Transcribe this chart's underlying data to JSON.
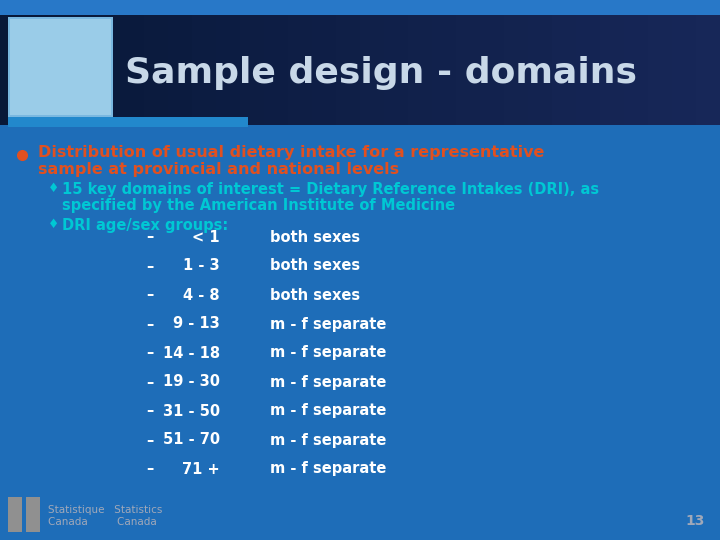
{
  "bg_color": "#1e6ab0",
  "header_dark_bg": "#0d1f3c",
  "header_mid_bg": "#122040",
  "title": "Sample design - domains",
  "title_color": "#c8d8e8",
  "title_fontsize": 26,
  "icon_bg": "#aacce8",
  "accent_bar_color": "#2e86c1",
  "bullet_color": "#e05020",
  "bullet_text_line1": "Distribution of usual dietary intake for a representative",
  "bullet_text_line2": "sample at provincial and national levels",
  "bullet_fontsize": 11.5,
  "sub1_color": "#00c8d4",
  "sub1_text_line1": "15 key domains of interest = Dietary Reference Intakes (DRI), as",
  "sub1_text_line2": "specified by the American Institute of Medicine",
  "sub2_text": "DRI age/sex groups:",
  "sub2_color": "#00c8d4",
  "sub_fontsize": 10.5,
  "rows": [
    [
      "< 1",
      "both sexes"
    ],
    [
      "1 - 3",
      "both sexes"
    ],
    [
      "4 - 8",
      "both sexes"
    ],
    [
      "9 - 13",
      "m - f separate"
    ],
    [
      "14 - 18",
      "m - f separate"
    ],
    [
      "19 - 30",
      "m - f separate"
    ],
    [
      "31 - 50",
      "m - f separate"
    ],
    [
      "51 - 70",
      "m - f separate"
    ],
    [
      "71 +",
      "m - f separate"
    ]
  ],
  "row_color": "#ffffff",
  "row_fontsize": 10.5,
  "page_number": "13",
  "footer_color": "#a0a8b8",
  "footer_fontsize": 7.5
}
